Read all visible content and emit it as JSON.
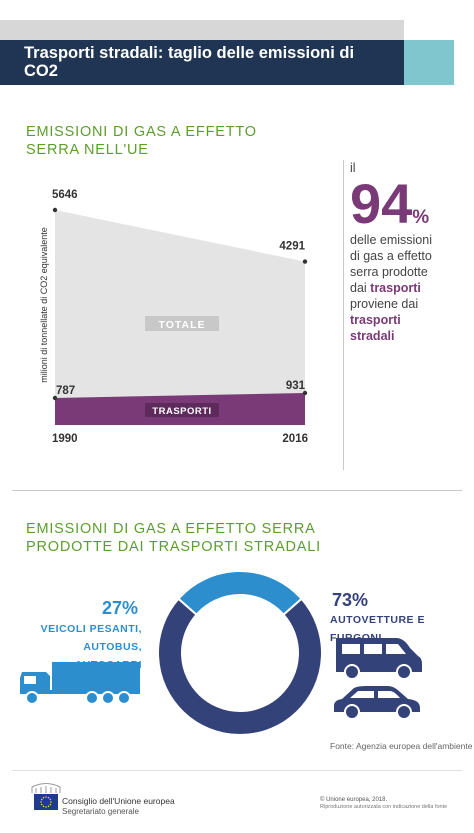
{
  "header": {
    "title": "Trasporti stradali: taglio delle emissioni di CO2"
  },
  "section1": {
    "title_line1": "EMISSIONI DI GAS A EFFETTO",
    "title_line2": "SERRA NELL'UE"
  },
  "chart_data": [
    {
      "type": "area",
      "x": [
        "1990",
        "2016"
      ],
      "series": [
        {
          "name": "TOTALE",
          "values": [
            5646,
            4291
          ],
          "color": "#e4e4e4"
        },
        {
          "name": "TRASPORTI",
          "values": [
            787,
            931
          ],
          "color": "#7a3a78"
        }
      ],
      "ylabel": "milioni di tonnellate di CO2 equivalente",
      "value_labels": [
        "5646",
        "4291",
        "787",
        "931"
      ]
    },
    {
      "type": "pie",
      "categories": [
        "AUTOVETTURE E FURGONI",
        "VEICOLI PESANTI, AUTOBUS, AUTOCARRI"
      ],
      "values": [
        73,
        27
      ],
      "colors": [
        "#34427a",
        "#2d8ecd"
      ]
    }
  ],
  "callout": {
    "line_il": "il",
    "big_number": "94",
    "percent": "%",
    "text1": "delle emissioni",
    "text2": "di gas a effetto",
    "text3": "serra prodotte",
    "text4_prefix": "dai ",
    "text4_em": "trasporti",
    "text5": "proviene dai",
    "text6_em": "trasporti",
    "text7_em": "stradali"
  },
  "section2": {
    "title_line1": "EMISSIONI DI GAS A EFFETTO SERRA",
    "title_line2": "PRODOTTE DAI TRASPORTI STRADALI",
    "left_pct": "27%",
    "left_label1": "VEICOLI PESANTI,",
    "left_label2": "AUTOBUS, AUTOCARRI",
    "right_pct": "73%",
    "right_label": "AUTOVETTURE E FURGONI",
    "source": "Fonte: Agenzia europea dell'ambiente"
  },
  "footer": {
    "council_name": "Consiglio dell'Unione europea",
    "council_sub": "Segretariato generale",
    "copyright1": "© Unione europea, 2018.",
    "copyright2": "Riproduzione autorizzata con indicazione della fonte"
  },
  "icons": [
    "truck-icon",
    "van-icon",
    "car-icon",
    "eu-flag-icon",
    "council-building-icon"
  ]
}
